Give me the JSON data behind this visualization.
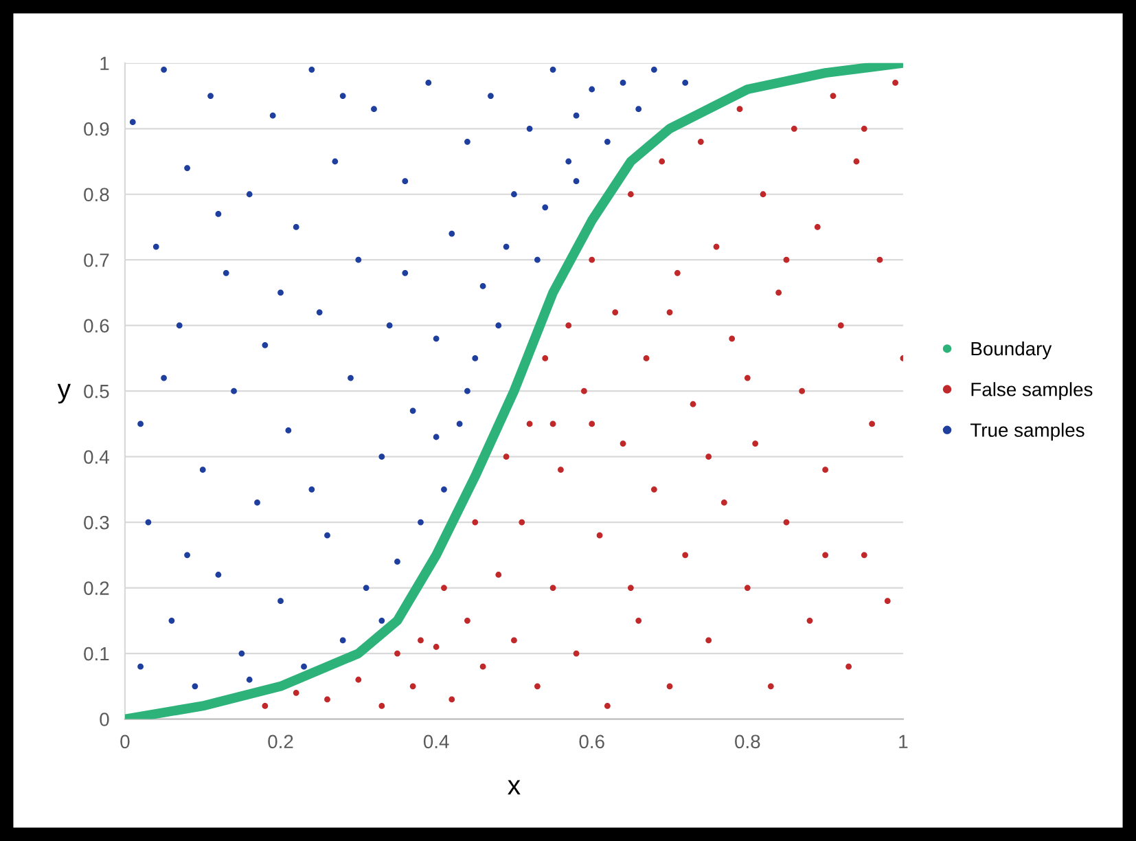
{
  "chart_data": {
    "type": "scatter",
    "xlabel": "x",
    "ylabel": "y",
    "xlim": [
      0,
      1
    ],
    "ylim": [
      0,
      1
    ],
    "xticks": [
      0,
      0.2,
      0.4,
      0.6,
      0.8,
      1
    ],
    "yticks": [
      0,
      0.1,
      0.2,
      0.3,
      0.4,
      0.5,
      0.6,
      0.7,
      0.8,
      0.9,
      1
    ],
    "grid": "y",
    "legend": "right",
    "marker": "circle",
    "series": [
      {
        "name": "Boundary",
        "type": "line",
        "marker": "none",
        "line_style": "solid",
        "color": "#2db37a",
        "x": [
          0,
          0.1,
          0.2,
          0.3,
          0.35,
          0.4,
          0.45,
          0.5,
          0.55,
          0.6,
          0.65,
          0.7,
          0.8,
          0.9,
          1
        ],
        "values": [
          0,
          0.02,
          0.05,
          0.1,
          0.15,
          0.25,
          0.37,
          0.5,
          0.65,
          0.76,
          0.85,
          0.9,
          0.96,
          0.985,
          1
        ]
      },
      {
        "name": "False samples",
        "color": "#c0282a",
        "x": [
          0.18,
          0.22,
          0.26,
          0.3,
          0.33,
          0.35,
          0.37,
          0.38,
          0.4,
          0.41,
          0.42,
          0.44,
          0.45,
          0.46,
          0.48,
          0.49,
          0.5,
          0.51,
          0.52,
          0.53,
          0.54,
          0.55,
          0.56,
          0.57,
          0.58,
          0.59,
          0.6,
          0.61,
          0.62,
          0.63,
          0.64,
          0.65,
          0.66,
          0.67,
          0.68,
          0.69,
          0.7,
          0.71,
          0.72,
          0.73,
          0.74,
          0.75,
          0.76,
          0.77,
          0.78,
          0.79,
          0.8,
          0.81,
          0.82,
          0.83,
          0.84,
          0.85,
          0.86,
          0.87,
          0.88,
          0.89,
          0.9,
          0.91,
          0.92,
          0.93,
          0.94,
          0.95,
          0.96,
          0.97,
          0.98,
          0.99,
          1.0,
          0.6,
          0.7,
          0.8,
          0.9,
          0.75,
          0.85,
          0.95,
          0.65,
          0.55
        ],
        "values": [
          0.02,
          0.04,
          0.03,
          0.06,
          0.02,
          0.1,
          0.05,
          0.12,
          0.11,
          0.2,
          0.03,
          0.15,
          0.3,
          0.08,
          0.22,
          0.4,
          0.12,
          0.3,
          0.45,
          0.05,
          0.55,
          0.2,
          0.38,
          0.6,
          0.1,
          0.5,
          0.7,
          0.28,
          0.02,
          0.62,
          0.42,
          0.8,
          0.15,
          0.55,
          0.35,
          0.85,
          0.05,
          0.68,
          0.25,
          0.48,
          0.88,
          0.12,
          0.72,
          0.33,
          0.58,
          0.93,
          0.2,
          0.42,
          0.8,
          0.05,
          0.65,
          0.3,
          0.9,
          0.5,
          0.15,
          0.75,
          0.38,
          0.95,
          0.6,
          0.08,
          0.85,
          0.25,
          0.45,
          0.7,
          0.18,
          0.97,
          0.55,
          0.45,
          0.62,
          0.52,
          0.25,
          0.4,
          0.7,
          0.9,
          0.2,
          0.45
        ]
      },
      {
        "name": "True samples",
        "color": "#1f3f9f",
        "x": [
          0.01,
          0.02,
          0.03,
          0.04,
          0.05,
          0.06,
          0.07,
          0.08,
          0.09,
          0.1,
          0.11,
          0.12,
          0.13,
          0.14,
          0.15,
          0.16,
          0.17,
          0.18,
          0.19,
          0.2,
          0.21,
          0.22,
          0.23,
          0.24,
          0.25,
          0.26,
          0.27,
          0.28,
          0.29,
          0.3,
          0.31,
          0.32,
          0.33,
          0.34,
          0.35,
          0.36,
          0.37,
          0.38,
          0.39,
          0.4,
          0.41,
          0.42,
          0.43,
          0.44,
          0.45,
          0.46,
          0.47,
          0.48,
          0.5,
          0.52,
          0.53,
          0.55,
          0.57,
          0.58,
          0.6,
          0.62,
          0.64,
          0.66,
          0.68,
          0.72,
          0.02,
          0.05,
          0.08,
          0.12,
          0.16,
          0.2,
          0.24,
          0.28,
          0.33,
          0.36,
          0.4,
          0.44,
          0.49,
          0.54,
          0.58
        ],
        "values": [
          0.91,
          0.45,
          0.3,
          0.72,
          0.99,
          0.15,
          0.6,
          0.84,
          0.05,
          0.38,
          0.95,
          0.22,
          0.68,
          0.5,
          0.1,
          0.8,
          0.33,
          0.57,
          0.92,
          0.18,
          0.44,
          0.75,
          0.08,
          0.99,
          0.62,
          0.28,
          0.85,
          0.12,
          0.52,
          0.7,
          0.2,
          0.93,
          0.4,
          0.6,
          0.24,
          0.82,
          0.47,
          0.3,
          0.97,
          0.58,
          0.35,
          0.74,
          0.45,
          0.88,
          0.55,
          0.66,
          0.95,
          0.6,
          0.8,
          0.9,
          0.7,
          0.99,
          0.85,
          0.92,
          0.96,
          0.88,
          0.97,
          0.93,
          0.99,
          0.97,
          0.08,
          0.52,
          0.25,
          0.77,
          0.06,
          0.65,
          0.35,
          0.95,
          0.15,
          0.68,
          0.43,
          0.5,
          0.72,
          0.78,
          0.82
        ]
      }
    ]
  }
}
